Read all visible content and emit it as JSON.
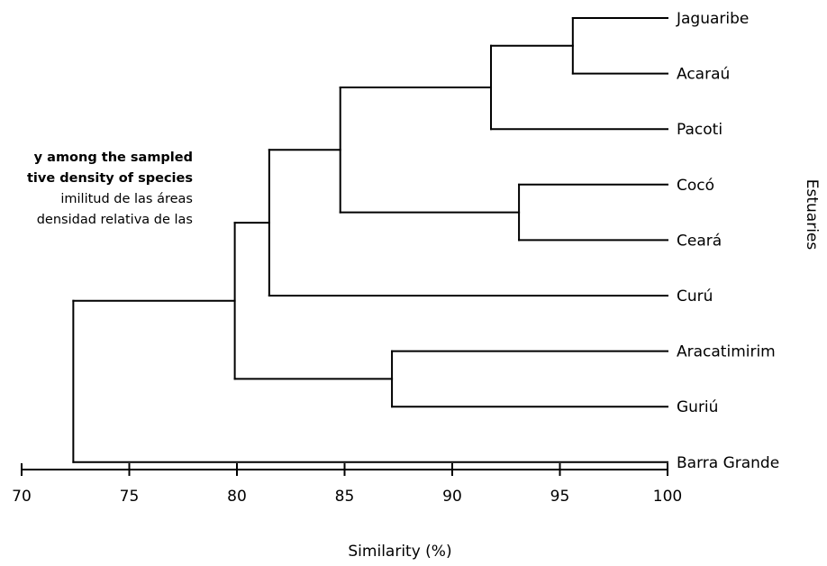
{
  "caption_fragment": {
    "line1": "y among the sampled",
    "line2": "tive density of species",
    "line3": "imilitud de las áreas",
    "line4": "densidad relativa de las"
  },
  "chart_data": {
    "type": "dendrogram",
    "orientation": "horizontal",
    "xlabel": "Similarity (%)",
    "ylabel": "Estuaries",
    "xlim": [
      70,
      100
    ],
    "ticks": [
      70,
      75,
      80,
      85,
      90,
      95,
      100
    ],
    "tick_labels": [
      "70",
      "75",
      "80",
      "85",
      "90",
      "95",
      "100"
    ],
    "leaves": [
      "Jaguaribe",
      "Acaraú",
      "Pacoti",
      "Cocó",
      "Ceará",
      "Curú",
      "Aracatimirim",
      "Guriú",
      "Barra Grande"
    ],
    "merges": [
      {
        "a": "Jaguaribe",
        "b": "Acaraú",
        "similarity": 95.6
      },
      {
        "a": "Jaguaribe+Acaraú",
        "b": "Pacoti",
        "similarity": 91.8
      },
      {
        "a": "Cocó",
        "b": "Ceará",
        "similarity": 93.1
      },
      {
        "a": "Jaguaribe+Acaraú+Pacoti",
        "b": "Cocó+Ceará",
        "similarity": 84.8
      },
      {
        "a": "Jaguaribe–Ceará group",
        "b": "Curú",
        "similarity": 81.5
      },
      {
        "a": "Aracatimirim",
        "b": "Guriú",
        "similarity": 87.2
      },
      {
        "a": "Jaguaribe–Curú group",
        "b": "Aracatimirim+Guriú",
        "similarity": 79.9
      },
      {
        "a": "all other estuaries",
        "b": "Barra Grande",
        "similarity": 72.4
      }
    ]
  }
}
